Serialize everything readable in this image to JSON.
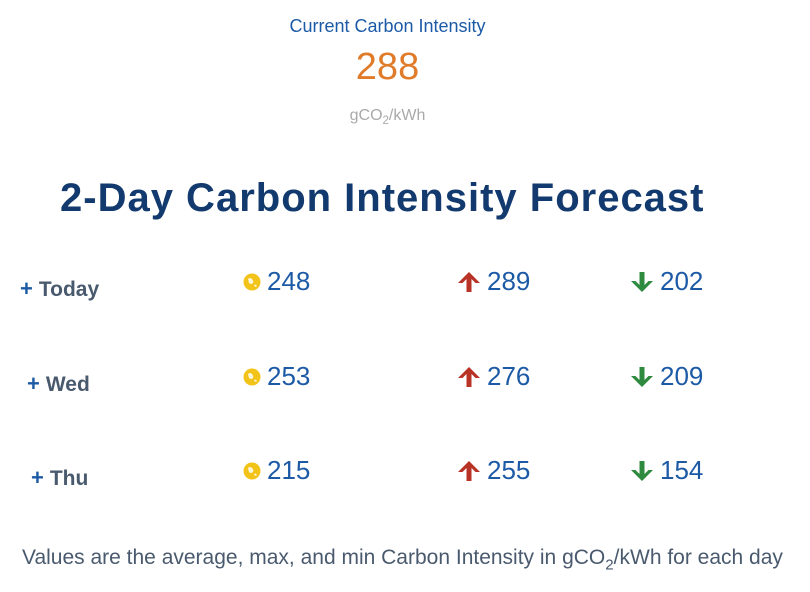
{
  "current": {
    "label": "Current Carbon Intensity",
    "value": "288",
    "unit_prefix": "gCO",
    "unit_sub": "2",
    "unit_suffix": "/kWh"
  },
  "forecast": {
    "title": "2-Day Carbon Intensity Forecast",
    "rows": [
      {
        "plus": "+",
        "day": "Today",
        "avg": "248",
        "max": "289",
        "min": "202"
      },
      {
        "plus": "+",
        "day": "Wed",
        "avg": "253",
        "max": "276",
        "min": "209"
      },
      {
        "plus": "+",
        "day": "Thu",
        "avg": "215",
        "max": "255",
        "min": "154"
      }
    ]
  },
  "footer": {
    "prefix": "Values are the average, max, and min Carbon Intensity in gCO",
    "sub": "2",
    "suffix": "/kWh for each day"
  },
  "colors": {
    "accent_blue": "#1d5aa6",
    "title_navy": "#123a6e",
    "current_value_orange": "#e07b2a",
    "avg_icon_yellow": "#f2c318",
    "max_arrow_red": "#b83226",
    "min_arrow_green": "#2e8a3e"
  },
  "icons": {
    "avg": "globe-icon",
    "max": "arrow-up-icon",
    "min": "arrow-down-icon"
  }
}
